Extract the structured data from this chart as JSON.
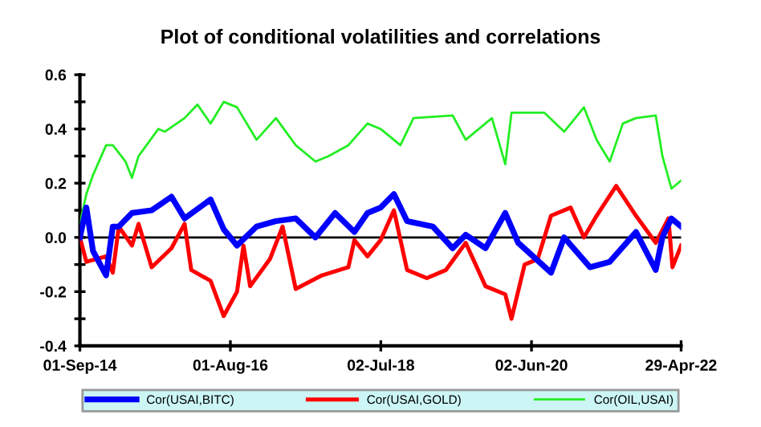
{
  "chart_data": {
    "type": "line",
    "title": "Plot of conditional volatilities and correlations",
    "xlim": [
      "2014-09-01",
      "2022-04-29"
    ],
    "xticks": [
      {
        "value": "2014-09-01",
        "label": "01-Sep-14"
      },
      {
        "value": "2016-08-01",
        "label": "01-Aug-16"
      },
      {
        "value": "2018-07-02",
        "label": "02-Jul-18"
      },
      {
        "value": "2020-06-02",
        "label": "02-Jun-20"
      },
      {
        "value": "2022-04-29",
        "label": "29-Apr-22"
      }
    ],
    "ylim": [
      -0.4,
      0.6
    ],
    "yticks": [
      {
        "value": -0.4,
        "label": "-0.4"
      },
      {
        "value": -0.3,
        "label": null
      },
      {
        "value": -0.2,
        "label": "-0.2"
      },
      {
        "value": -0.1,
        "label": null
      },
      {
        "value": 0,
        "label": "0.0"
      },
      {
        "value": 0.1,
        "label": null
      },
      {
        "value": 0.2,
        "label": "0.2"
      },
      {
        "value": 0.3,
        "label": null
      },
      {
        "value": 0.4,
        "label": "0.4"
      },
      {
        "value": 0.5,
        "label": null
      },
      {
        "value": 0.6,
        "label": "0.6"
      }
    ],
    "ref_lines": [
      {
        "axis": "y",
        "value": 0,
        "color": "#000000"
      }
    ],
    "grid": false,
    "legend": "bottom",
    "marker": "none",
    "line_style": "solid",
    "series": [
      {
        "name": "Cor(USAI,BITC)",
        "color": "#0000ff",
        "x": [
          "2014-09-01",
          "2014-10-01",
          "2014-11-01",
          "2015-01-01",
          "2015-02-01",
          "2015-03-01",
          "2015-05-01",
          "2015-08-01",
          "2015-11-01",
          "2016-01-01",
          "2016-05-01",
          "2016-07-01",
          "2016-09-01",
          "2016-12-01",
          "2017-03-01",
          "2017-06-01",
          "2017-09-01",
          "2017-12-01",
          "2018-03-01",
          "2018-05-01",
          "2018-07-01",
          "2018-09-01",
          "2018-11-01",
          "2019-03-01",
          "2019-06-01",
          "2019-08-01",
          "2019-11-01",
          "2020-02-01",
          "2020-04-01",
          "2020-09-01",
          "2020-11-01",
          "2021-03-01",
          "2021-06-01",
          "2021-10-01",
          "2022-01-01",
          "2022-02-01",
          "2022-03-15",
          "2022-04-29"
        ],
        "values": [
          0.0,
          0.11,
          -0.05,
          -0.14,
          0.04,
          0.04,
          0.09,
          0.1,
          0.15,
          0.07,
          0.14,
          0.03,
          -0.03,
          0.04,
          0.06,
          0.07,
          0.0,
          0.09,
          0.02,
          0.09,
          0.11,
          0.16,
          0.06,
          0.04,
          -0.04,
          0.01,
          -0.04,
          0.09,
          -0.02,
          -0.13,
          0.0,
          -0.11,
          -0.09,
          0.02,
          -0.12,
          0.0,
          0.07,
          0.04
        ]
      },
      {
        "name": "Cor(USAI,GOLD)",
        "color": "#ff0000",
        "x": [
          "2014-09-01",
          "2014-10-01",
          "2015-01-01",
          "2015-02-01",
          "2015-03-01",
          "2015-05-01",
          "2015-06-01",
          "2015-08-01",
          "2015-11-01",
          "2016-01-01",
          "2016-02-01",
          "2016-05-01",
          "2016-07-01",
          "2016-09-01",
          "2016-10-01",
          "2016-11-01",
          "2017-02-01",
          "2017-04-01",
          "2017-06-01",
          "2017-10-01",
          "2018-02-01",
          "2018-03-01",
          "2018-05-01",
          "2018-07-01",
          "2018-09-01",
          "2018-11-01",
          "2019-02-01",
          "2019-05-01",
          "2019-08-01",
          "2019-11-01",
          "2020-02-01",
          "2020-03-01",
          "2020-05-01",
          "2020-07-01",
          "2020-09-01",
          "2020-12-01",
          "2021-02-01",
          "2021-04-01",
          "2021-07-01",
          "2021-10-01",
          "2022-01-01",
          "2022-03-01",
          "2022-03-20",
          "2022-04-29"
        ],
        "values": [
          0.0,
          -0.09,
          -0.07,
          -0.13,
          0.04,
          -0.03,
          0.05,
          -0.11,
          -0.04,
          0.05,
          -0.12,
          -0.16,
          -0.29,
          -0.2,
          -0.03,
          -0.18,
          -0.08,
          0.04,
          -0.19,
          -0.14,
          -0.11,
          -0.01,
          -0.07,
          -0.01,
          0.1,
          -0.12,
          -0.15,
          -0.12,
          -0.02,
          -0.18,
          -0.21,
          -0.3,
          -0.1,
          -0.08,
          0.08,
          0.11,
          0.0,
          0.08,
          0.19,
          0.08,
          -0.02,
          0.07,
          -0.11,
          -0.03
        ]
      },
      {
        "name": "Cor(OIL,USAI)",
        "color": "#22ee22",
        "x": [
          "2014-09-01",
          "2014-10-01",
          "2014-11-01",
          "2015-01-01",
          "2015-02-01",
          "2015-04-01",
          "2015-05-01",
          "2015-06-01",
          "2015-09-01",
          "2015-10-01",
          "2016-01-01",
          "2016-03-01",
          "2016-05-01",
          "2016-07-01",
          "2016-09-01",
          "2016-12-01",
          "2017-03-01",
          "2017-06-01",
          "2017-09-01",
          "2017-11-01",
          "2018-02-01",
          "2018-05-01",
          "2018-07-01",
          "2018-10-01",
          "2018-12-01",
          "2019-06-01",
          "2019-08-01",
          "2019-12-01",
          "2020-02-01",
          "2020-03-01",
          "2020-08-01",
          "2020-11-01",
          "2021-02-01",
          "2021-04-01",
          "2021-06-01",
          "2021-08-01",
          "2021-10-01",
          "2022-01-01",
          "2022-02-01",
          "2022-03-15",
          "2022-04-29"
        ],
        "values": [
          0.05,
          0.16,
          0.23,
          0.34,
          0.34,
          0.28,
          0.22,
          0.3,
          0.4,
          0.39,
          0.44,
          0.49,
          0.42,
          0.5,
          0.48,
          0.36,
          0.44,
          0.34,
          0.28,
          0.3,
          0.34,
          0.42,
          0.4,
          0.34,
          0.44,
          0.45,
          0.36,
          0.44,
          0.27,
          0.46,
          0.46,
          0.39,
          0.48,
          0.36,
          0.28,
          0.42,
          0.44,
          0.45,
          0.3,
          0.18,
          0.21
        ]
      }
    ]
  }
}
